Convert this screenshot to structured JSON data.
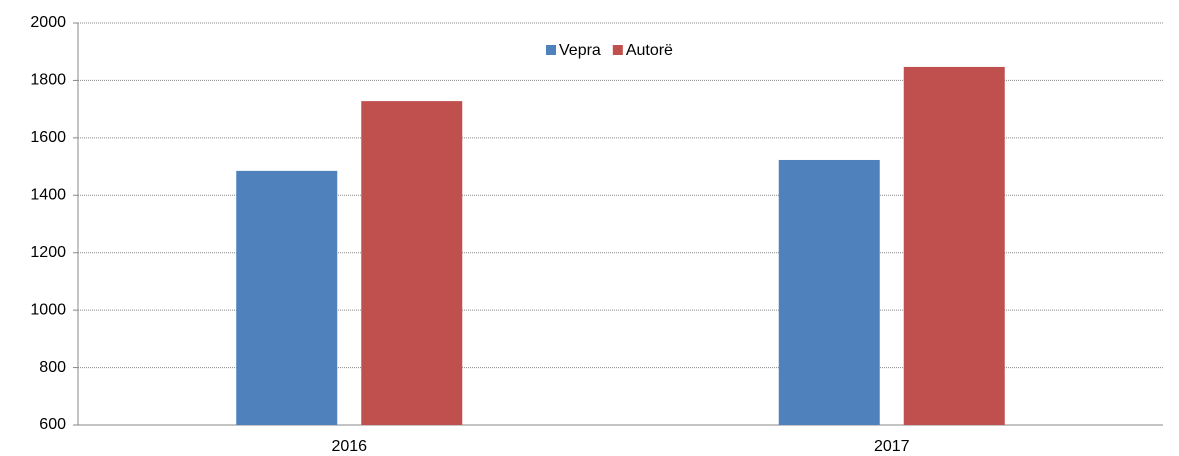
{
  "chart_data": {
    "type": "bar",
    "categories": [
      "2016",
      "2017"
    ],
    "series": [
      {
        "name": "Vepra",
        "color": "#4f81bd",
        "values": [
          1485,
          1523
        ]
      },
      {
        "name": "Autorë",
        "color": "#c0504d",
        "values": [
          1728,
          1847
        ]
      }
    ],
    "ylim": [
      600,
      2000
    ],
    "yticks": [
      600,
      800,
      1000,
      1200,
      1400,
      1600,
      1800,
      2000
    ],
    "grid": true,
    "legend": "top"
  }
}
